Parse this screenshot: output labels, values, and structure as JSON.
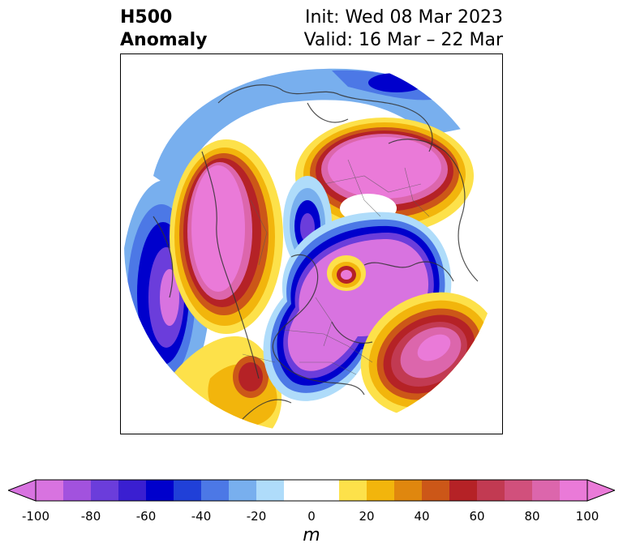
{
  "title": {
    "left_line1": "H500",
    "left_line2": "Anomaly",
    "right_line1": "Init: Wed 08 Mar 2023",
    "right_line2": "Valid: 16 Mar – 22 Mar"
  },
  "map": {
    "projection": "polar-stereographic-north",
    "features": [
      "contour-filled anomalies",
      "coastlines",
      "country borders",
      "state/province borders"
    ]
  },
  "colorbar": {
    "label": "m",
    "extend": "both",
    "ticks": [
      "-100",
      "-80",
      "-60",
      "-40",
      "-20",
      "0",
      "20",
      "40",
      "60",
      "80",
      "100"
    ],
    "colors": [
      "#d873e0",
      "#a252de",
      "#6b3ddb",
      "#3a1fd1",
      "#0000cc",
      "#2040d8",
      "#4c78e6",
      "#78afee",
      "#afdcfa",
      "#ffffff",
      "#ffffff",
      "#fde14a",
      "#f2b50c",
      "#e0870e",
      "#cc5718",
      "#b52226",
      "#c23a52",
      "#d1507c",
      "#dc66ac",
      "#ea7ad8"
    ],
    "under_color": "#d873e0",
    "over_color": "#ea7ad8"
  }
}
